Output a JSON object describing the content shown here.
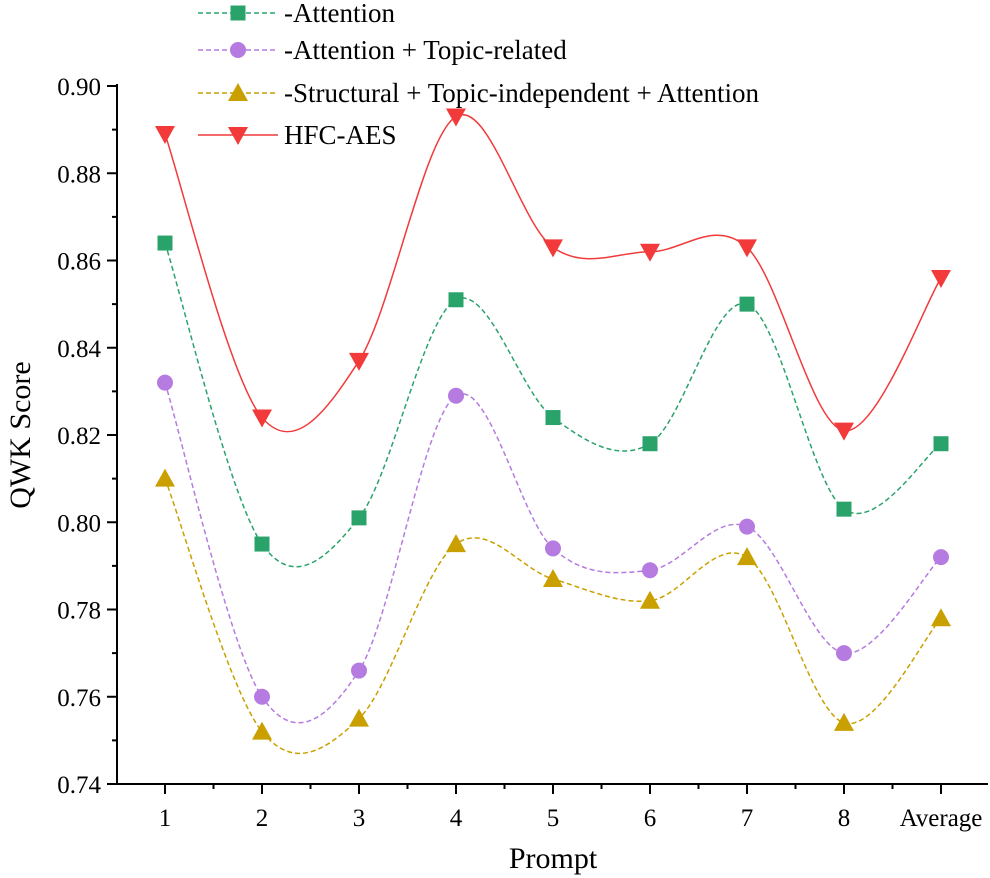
{
  "chart_data": {
    "type": "line",
    "title": "",
    "xlabel": "Prompt",
    "ylabel": "QWK Score",
    "categories": [
      "1",
      "2",
      "3",
      "4",
      "5",
      "6",
      "7",
      "8",
      "Average"
    ],
    "ylim": [
      0.74,
      0.9
    ],
    "yticks": [
      "0.74",
      "0.76",
      "0.78",
      "0.80",
      "0.82",
      "0.84",
      "0.86",
      "0.88",
      "0.90"
    ],
    "grid": false,
    "legend": "top-left",
    "series": [
      {
        "name": "-Attention",
        "marker": "square",
        "color": "#2aa36b",
        "dash": true,
        "values": [
          0.864,
          0.795,
          0.801,
          0.851,
          0.824,
          0.818,
          0.85,
          0.803,
          0.818
        ]
      },
      {
        "name": "-Attention + Topic-related",
        "marker": "circle",
        "color": "#b57be0",
        "dash": true,
        "values": [
          0.832,
          0.76,
          0.766,
          0.829,
          0.794,
          0.789,
          0.799,
          0.77,
          0.792
        ]
      },
      {
        "name": "-Structural + Topic-independent + Attention",
        "marker": "triangle-up",
        "color": "#c9a000",
        "dash": true,
        "values": [
          0.81,
          0.752,
          0.755,
          0.795,
          0.787,
          0.782,
          0.792,
          0.754,
          0.778
        ]
      },
      {
        "name": "HFC-AES",
        "marker": "triangle-down",
        "color": "#f23a3a",
        "dash": false,
        "values": [
          0.889,
          0.824,
          0.837,
          0.893,
          0.863,
          0.862,
          0.863,
          0.821,
          0.856
        ]
      }
    ]
  }
}
